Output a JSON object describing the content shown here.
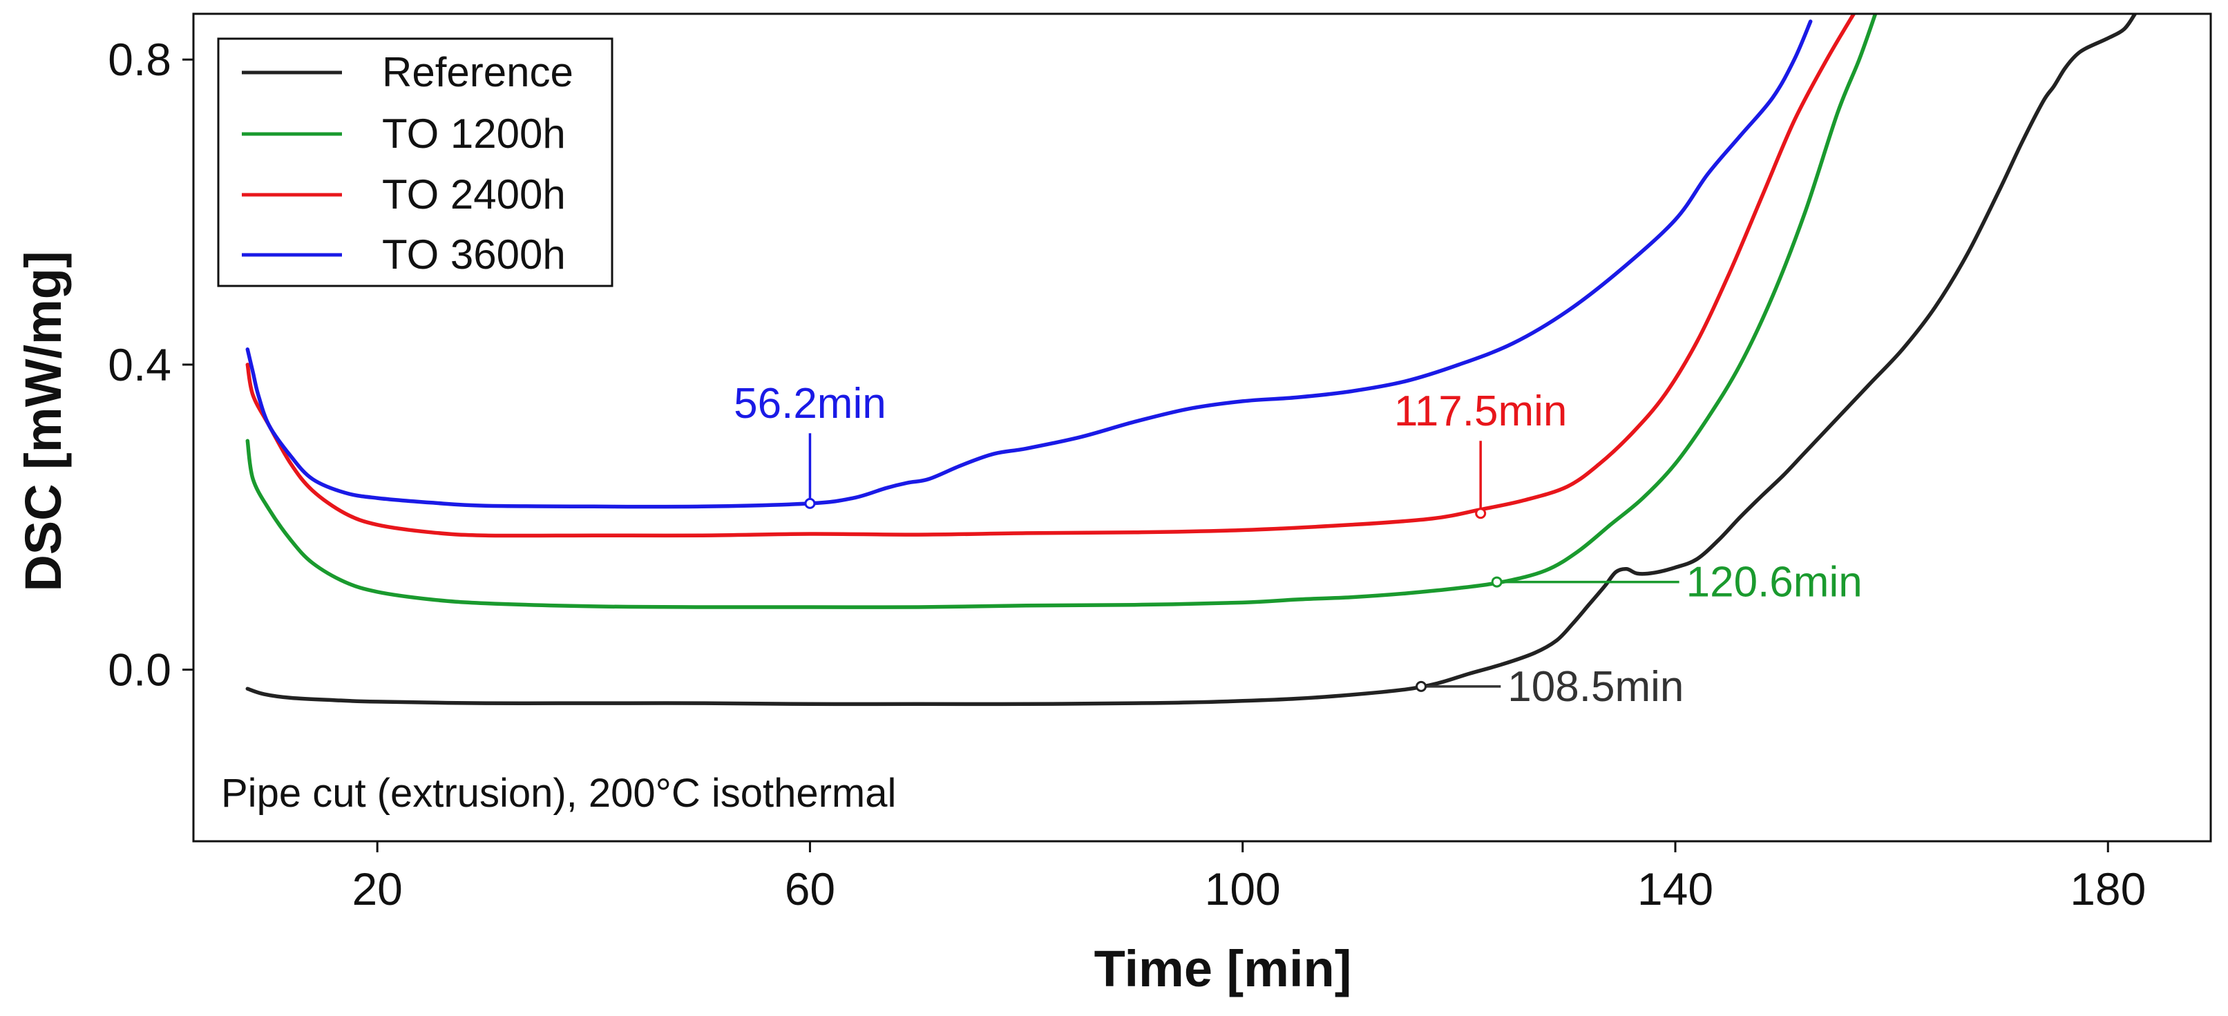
{
  "chart_data": {
    "type": "line",
    "title": "",
    "xlabel": "Time [min]",
    "ylabel": "DSC [mW/mg]",
    "xlim": [
      3,
      189.5
    ],
    "ylim": [
      -0.225,
      0.86
    ],
    "xticks": [
      20,
      60,
      100,
      140,
      180
    ],
    "yticks": [
      0.0,
      0.4,
      0.8
    ],
    "ytick_labels": [
      "0.0",
      "0.4",
      "0.8"
    ],
    "legend_position": "top-left",
    "note": "Pipe cut (extrusion), 200°C isothermal",
    "series": [
      {
        "name": "Reference",
        "color": "#222222",
        "x": [
          8.0,
          9.5,
          12,
          16,
          20,
          30,
          40,
          50,
          60,
          70,
          80,
          90,
          95,
          100,
          105,
          110,
          115,
          118,
          121,
          124,
          127,
          129,
          130.5,
          132,
          133.5,
          134.5,
          135.5,
          136.5,
          138,
          140,
          142,
          144,
          146,
          148,
          150,
          152,
          155,
          158,
          161,
          164,
          167,
          170,
          172,
          174,
          175,
          176,
          177,
          178,
          180,
          181.5,
          182.5
        ],
        "values": [
          -0.025,
          -0.032,
          -0.037,
          -0.04,
          -0.042,
          -0.044,
          -0.044,
          -0.044,
          -0.045,
          -0.045,
          -0.045,
          -0.044,
          -0.043,
          -0.041,
          -0.038,
          -0.033,
          -0.026,
          -0.018,
          -0.005,
          0.007,
          0.022,
          0.038,
          0.06,
          0.085,
          0.11,
          0.128,
          0.132,
          0.126,
          0.127,
          0.134,
          0.145,
          0.17,
          0.2,
          0.228,
          0.255,
          0.285,
          0.33,
          0.375,
          0.42,
          0.475,
          0.545,
          0.63,
          0.69,
          0.745,
          0.765,
          0.788,
          0.805,
          0.815,
          0.828,
          0.84,
          0.86
        ]
      },
      {
        "name": "TO 1200h",
        "color": "#1a9a2e",
        "x": [
          8.0,
          8.5,
          10,
          12,
          14,
          17,
          20,
          25,
          30,
          40,
          50,
          60,
          70,
          80,
          90,
          100,
          105,
          110,
          115,
          120,
          124,
          128,
          131,
          134,
          137,
          140,
          143,
          146,
          149,
          152,
          155,
          157,
          158.5
        ],
        "values": [
          0.3,
          0.25,
          0.21,
          0.17,
          0.14,
          0.115,
          0.102,
          0.092,
          0.087,
          0.083,
          0.082,
          0.082,
          0.082,
          0.084,
          0.085,
          0.088,
          0.092,
          0.095,
          0.1,
          0.107,
          0.115,
          0.13,
          0.155,
          0.19,
          0.225,
          0.27,
          0.33,
          0.4,
          0.49,
          0.6,
          0.73,
          0.8,
          0.86
        ]
      },
      {
        "name": "TO 2400h",
        "color": "#e8161b",
        "x": [
          8.0,
          8.5,
          10,
          12,
          14,
          17,
          20,
          25,
          30,
          40,
          50,
          60,
          70,
          80,
          90,
          100,
          110,
          117.5,
          122,
          126,
          130,
          133,
          136,
          139,
          142,
          145,
          148,
          151,
          154,
          156.5
        ],
        "values": [
          0.4,
          0.36,
          0.32,
          0.27,
          0.235,
          0.205,
          0.19,
          0.18,
          0.176,
          0.176,
          0.176,
          0.178,
          0.177,
          0.179,
          0.18,
          0.183,
          0.19,
          0.198,
          0.21,
          0.222,
          0.24,
          0.27,
          0.31,
          0.36,
          0.43,
          0.52,
          0.62,
          0.72,
          0.8,
          0.86
        ]
      },
      {
        "name": "TO 3600h",
        "color": "#1a1ae6",
        "x": [
          8.0,
          8.5,
          9,
          10,
          12,
          14,
          17,
          20,
          25,
          30,
          40,
          50,
          60,
          64,
          67,
          69,
          71,
          74,
          77,
          80,
          85,
          90,
          95,
          100,
          105,
          110,
          115,
          120,
          125,
          130,
          135,
          140,
          143,
          146,
          149,
          151,
          152.5
        ],
        "values": [
          0.42,
          0.39,
          0.36,
          0.32,
          0.28,
          0.25,
          0.232,
          0.225,
          0.219,
          0.215,
          0.214,
          0.214,
          0.218,
          0.225,
          0.238,
          0.245,
          0.25,
          0.268,
          0.283,
          0.29,
          0.305,
          0.325,
          0.342,
          0.352,
          0.357,
          0.365,
          0.378,
          0.4,
          0.428,
          0.47,
          0.525,
          0.59,
          0.65,
          0.7,
          0.75,
          0.8,
          0.85
        ]
      }
    ],
    "annotations": [
      {
        "text": "56.2min",
        "color": "#1a1ae6",
        "x": 60.0,
        "y": 0.218,
        "label_x": 60.0,
        "label_y": 0.33,
        "style": "vertical"
      },
      {
        "text": "117.5min",
        "color": "#e8161b",
        "x": 122.0,
        "y": 0.205,
        "label_x": 122.0,
        "label_y": 0.32,
        "style": "vertical"
      },
      {
        "text": "120.6min",
        "color": "#1a9a2e",
        "x": 123.5,
        "y": 0.115,
        "label_x": 141.0,
        "label_y": 0.115,
        "style": "horizontal"
      },
      {
        "text": "108.5min",
        "color": "#333333",
        "x": 116.5,
        "y": -0.022,
        "label_x": 124.5,
        "label_y": -0.022,
        "style": "horizontal"
      }
    ]
  }
}
